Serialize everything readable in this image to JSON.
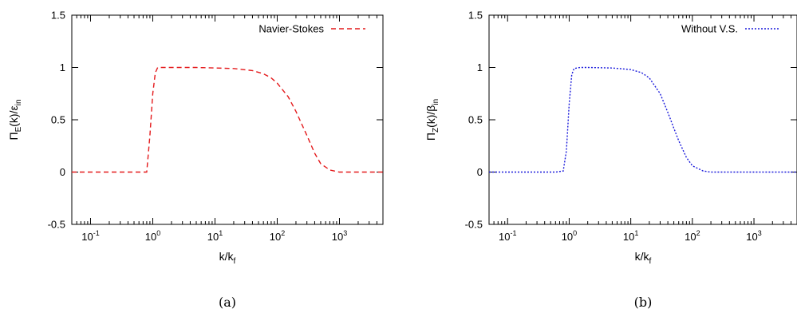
{
  "chart_data": [
    {
      "type": "line",
      "panel_label": "(a)",
      "xlabel": {
        "base": "k/k",
        "sub": "f"
      },
      "ylabel": {
        "pre": "Π",
        "sub1": "E",
        "mid": "(k)/ε",
        "sub2": "in"
      },
      "xscale": "log",
      "xlim": [
        0.05,
        5000
      ],
      "ylim": [
        -0.5,
        1.5
      ],
      "yticks": [
        "-0.5",
        "0",
        "0.5",
        "1",
        "1.5"
      ],
      "xticks": [
        {
          "base": "10",
          "exp": "-1"
        },
        {
          "base": "10",
          "exp": "0"
        },
        {
          "base": "10",
          "exp": "1"
        },
        {
          "base": "10",
          "exp": "2"
        },
        {
          "base": "10",
          "exp": "3"
        }
      ],
      "legend_position": "top-right",
      "series": [
        {
          "name": "Navier-Stokes",
          "color": "#e41a1c",
          "dash": "dashed",
          "x": [
            0.05,
            0.1,
            0.3,
            0.6,
            0.8,
            0.9,
            1.0,
            1.1,
            1.2,
            1.5,
            2,
            5,
            10,
            20,
            40,
            60,
            80,
            100,
            150,
            200,
            300,
            400,
            500,
            700,
            1000,
            2000,
            5000
          ],
          "y": [
            0,
            0,
            0,
            0,
            0,
            0.35,
            0.75,
            0.95,
            1.0,
            1.0,
            1.0,
            1.0,
            0.995,
            0.99,
            0.97,
            0.94,
            0.9,
            0.85,
            0.72,
            0.58,
            0.35,
            0.18,
            0.08,
            0.02,
            0,
            0,
            0
          ]
        }
      ]
    },
    {
      "type": "line",
      "panel_label": "(b)",
      "xlabel": {
        "base": "k/k",
        "sub": "f"
      },
      "ylabel": {
        "pre": "Π",
        "sub1": "Z",
        "mid": "(k)/β",
        "sub2": "in"
      },
      "xscale": "log",
      "xlim": [
        0.05,
        5000
      ],
      "ylim": [
        -0.5,
        1.5
      ],
      "yticks": [
        "-0.5",
        "0",
        "0.5",
        "1",
        "1.5"
      ],
      "xticks": [
        {
          "base": "10",
          "exp": "-1"
        },
        {
          "base": "10",
          "exp": "0"
        },
        {
          "base": "10",
          "exp": "1"
        },
        {
          "base": "10",
          "exp": "2"
        },
        {
          "base": "10",
          "exp": "3"
        }
      ],
      "legend_position": "top-right",
      "series": [
        {
          "name": "Without V.S.",
          "color": "#1a1adb",
          "dash": "dotted",
          "x": [
            0.05,
            0.1,
            0.3,
            0.6,
            0.8,
            0.9,
            1.0,
            1.1,
            1.2,
            1.5,
            2,
            5,
            10,
            15,
            20,
            30,
            40,
            50,
            60,
            80,
            100,
            150,
            200,
            500,
            1000,
            5000
          ],
          "y": [
            0,
            0,
            0,
            0,
            0.01,
            0.2,
            0.65,
            0.93,
            0.99,
            1.0,
            1.0,
            0.995,
            0.98,
            0.95,
            0.9,
            0.75,
            0.57,
            0.42,
            0.3,
            0.14,
            0.06,
            0.01,
            0,
            0,
            0,
            0
          ]
        }
      ]
    }
  ]
}
